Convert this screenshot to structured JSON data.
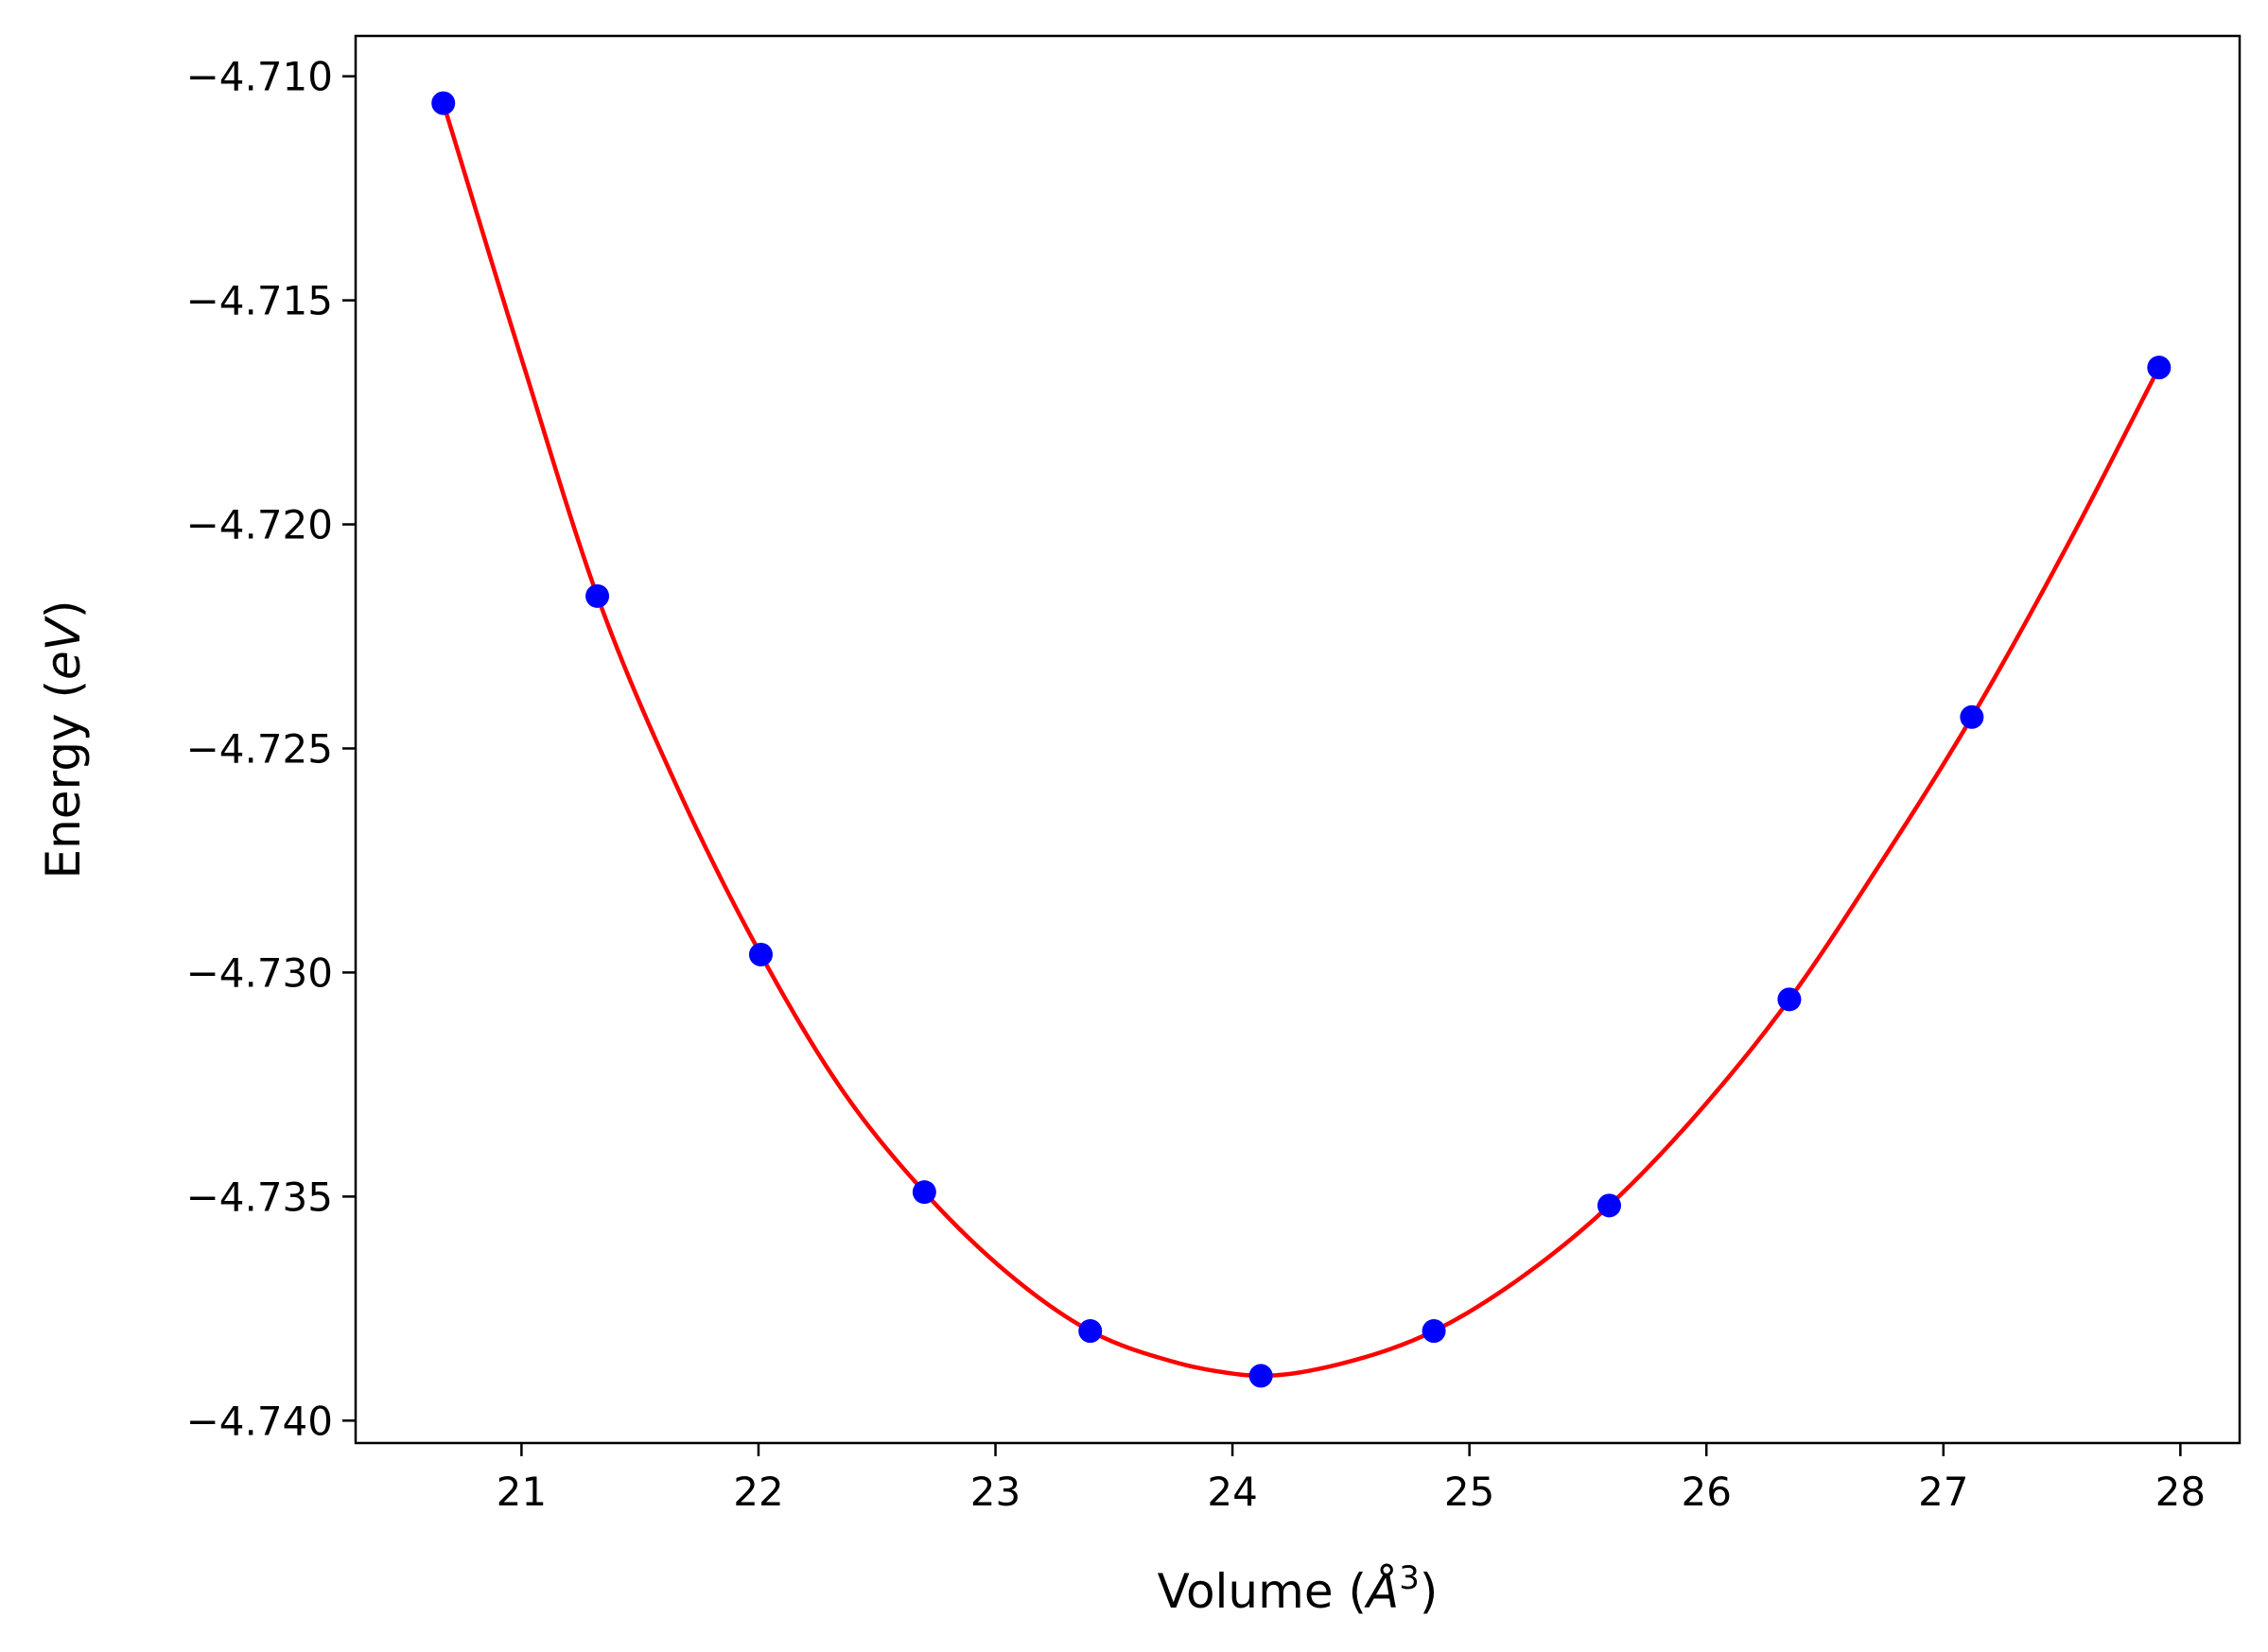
{
  "chart_data": {
    "type": "line",
    "xlabel": {
      "prefix": "Volume (",
      "italic": "Å",
      "superscript": "3",
      "suffix": ")"
    },
    "ylabel": {
      "prefix": "Energy (",
      "italic": "eV",
      "suffix": ")"
    },
    "xlim": [
      20.3,
      28.25
    ],
    "ylim": [
      -4.7405,
      -4.7091
    ],
    "xticks": [
      21,
      22,
      23,
      24,
      25,
      26,
      27,
      28
    ],
    "xtick_labels": [
      "21",
      "22",
      "23",
      "24",
      "25",
      "26",
      "27",
      "28"
    ],
    "yticks": [
      -4.71,
      -4.715,
      -4.72,
      -4.725,
      -4.73,
      -4.735,
      -4.74
    ],
    "ytick_labels": [
      "−4.710",
      "−4.715",
      "−4.720",
      "−4.725",
      "−4.730",
      "−4.735",
      "−4.740"
    ],
    "grid": false,
    "series": [
      {
        "kind": "points",
        "color": "#0000ff",
        "x": [
          20.67,
          21.32,
          22.01,
          22.7,
          23.4,
          24.12,
          24.85,
          25.59,
          26.35,
          27.12,
          27.91
        ],
        "y": [
          -4.7106,
          -4.7216,
          -4.7296,
          -4.7349,
          -4.738,
          -4.739,
          -4.738,
          -4.7352,
          -4.7306,
          -4.7243,
          -4.7165
        ]
      },
      {
        "kind": "fit-curve",
        "color": "#ff0000",
        "x": [
          20.67,
          21.0,
          21.32,
          21.66,
          22.01,
          22.35,
          22.7,
          23.05,
          23.4,
          23.76,
          24.0,
          24.12,
          24.48,
          24.85,
          25.22,
          25.59,
          25.97,
          26.35,
          26.73,
          27.12,
          27.51,
          27.91
        ],
        "y": [
          -4.7106,
          -4.7163,
          -4.7216,
          -4.7259,
          -4.7296,
          -4.7326,
          -4.7349,
          -4.7367,
          -4.738,
          -4.7387,
          -4.73895,
          -4.739,
          -4.7387,
          -4.738,
          -4.7368,
          -4.7352,
          -4.7331,
          -4.7306,
          -4.7276,
          -4.7243,
          -4.7206,
          -4.7165
        ]
      }
    ]
  }
}
